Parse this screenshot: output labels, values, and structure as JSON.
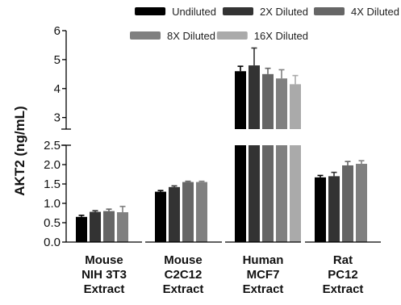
{
  "chart_data": {
    "type": "bar",
    "title": "",
    "xlabel": "",
    "ylabel": "AKT2 (ng/mL)",
    "ylim": [
      0,
      6
    ],
    "axis_break": {
      "lower_range": [
        0,
        2.5
      ],
      "upper_range": [
        2.6,
        6
      ]
    },
    "y_ticks": [
      "0.0",
      "0.5",
      "1.0",
      "1.5",
      "2.0",
      "2.5",
      "3",
      "4",
      "5",
      "6"
    ],
    "legend_placement": "top",
    "categories": [
      [
        "Mouse",
        "NIH 3T3",
        "Extract"
      ],
      [
        "Mouse",
        "C2C12",
        "Extract"
      ],
      [
        "Human",
        "MCF7",
        "Extract"
      ],
      [
        "Rat",
        "PC12",
        "Extract"
      ]
    ],
    "series": [
      {
        "name": "Undiluted",
        "color": "#000000",
        "values": [
          0.65,
          1.3,
          4.6,
          1.67
        ],
        "errors": [
          0.04,
          0.03,
          0.17,
          0.05
        ]
      },
      {
        "name": "2X Diluted",
        "color": "#333333",
        "values": [
          0.78,
          1.42,
          4.8,
          1.7
        ],
        "errors": [
          0.03,
          0.03,
          0.6,
          0.1
        ]
      },
      {
        "name": "4X Diluted",
        "color": "#666666",
        "values": [
          0.8,
          1.55,
          4.5,
          1.98
        ],
        "errors": [
          0.05,
          0.02,
          0.2,
          0.1
        ]
      },
      {
        "name": "8X Diluted",
        "color": "#808080",
        "values": [
          0.77,
          1.55,
          4.35,
          2.02
        ],
        "errors": [
          0.15,
          0.02,
          0.3,
          0.08
        ]
      },
      {
        "name": "16X Diluted",
        "color": "#aaaaaa",
        "values": [
          null,
          null,
          4.15,
          null
        ],
        "errors": [
          null,
          null,
          0.3,
          null
        ]
      }
    ]
  }
}
